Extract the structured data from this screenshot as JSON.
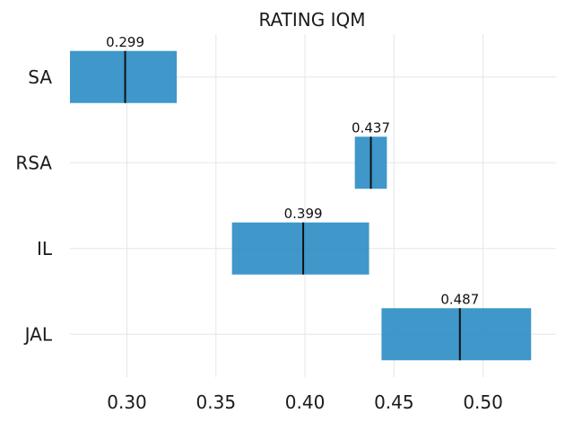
{
  "chart_data": {
    "type": "bar",
    "orientation": "horizontal",
    "title": "RATING IQM",
    "xlabel": "",
    "ylabel": "",
    "categories": [
      "SA",
      "RSA",
      "IL",
      "JAL"
    ],
    "intervals": [
      {
        "category": "SA",
        "low": 0.268,
        "high": 0.328,
        "point": 0.299,
        "label": "0.299"
      },
      {
        "category": "RSA",
        "low": 0.428,
        "high": 0.446,
        "point": 0.437,
        "label": "0.437"
      },
      {
        "category": "IL",
        "low": 0.359,
        "high": 0.436,
        "point": 0.399,
        "label": "0.399"
      },
      {
        "category": "JAL",
        "low": 0.443,
        "high": 0.527,
        "point": 0.487,
        "label": "0.487"
      }
    ],
    "xticks": [
      "0.30",
      "0.35",
      "0.40",
      "0.45",
      "0.50"
    ],
    "xlim": [
      0.268,
      0.541
    ],
    "grid": true,
    "colors": {
      "bar": "#2f8ec5",
      "point": "#111111",
      "grid": "#e6e6e6"
    }
  }
}
